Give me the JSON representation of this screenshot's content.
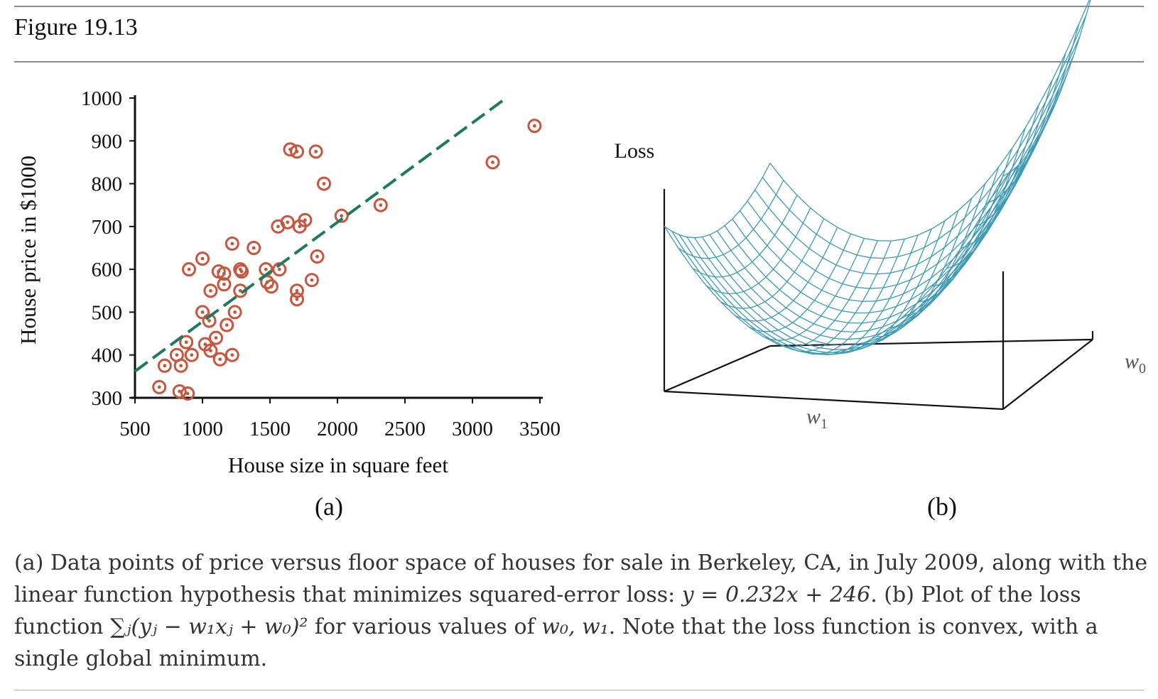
{
  "figure_title": "Figure 19.13",
  "chart_data": [
    {
      "type": "scatter",
      "title": "",
      "panel_label": "(a)",
      "xlabel": "House size in square feet",
      "ylabel": "House price in $1000",
      "xlim": [
        500,
        3500
      ],
      "ylim": [
        300,
        1000
      ],
      "x_ticks": [
        "500",
        "1000",
        "1500",
        "2000",
        "2500",
        "3000",
        "3500"
      ],
      "y_ticks": [
        "1000",
        "900",
        "800",
        "700",
        "600",
        "500",
        "400",
        "300"
      ],
      "marker_color": "#c8553d",
      "line_color": "#1e7a5a",
      "points": [
        [
          680,
          325
        ],
        [
          830,
          315
        ],
        [
          890,
          310
        ],
        [
          720,
          375
        ],
        [
          840,
          375
        ],
        [
          810,
          400
        ],
        [
          920,
          400
        ],
        [
          880,
          430
        ],
        [
          1020,
          425
        ],
        [
          1060,
          410
        ],
        [
          1100,
          440
        ],
        [
          1130,
          390
        ],
        [
          1220,
          400
        ],
        [
          1180,
          470
        ],
        [
          1240,
          500
        ],
        [
          1050,
          480
        ],
        [
          1000,
          500
        ],
        [
          1060,
          550
        ],
        [
          1160,
          565
        ],
        [
          1280,
          550
        ],
        [
          900,
          600
        ],
        [
          1000,
          625
        ],
        [
          1120,
          595
        ],
        [
          1160,
          590
        ],
        [
          1280,
          600
        ],
        [
          1290,
          595
        ],
        [
          1220,
          660
        ],
        [
          1380,
          650
        ],
        [
          1470,
          600
        ],
        [
          1480,
          570
        ],
        [
          1510,
          560
        ],
        [
          1570,
          600
        ],
        [
          1560,
          700
        ],
        [
          1630,
          710
        ],
        [
          1720,
          700
        ],
        [
          1760,
          715
        ],
        [
          1700,
          550
        ],
        [
          1700,
          530
        ],
        [
          1810,
          575
        ],
        [
          1850,
          630
        ],
        [
          1650,
          880
        ],
        [
          1700,
          875
        ],
        [
          1840,
          875
        ],
        [
          1900,
          800
        ],
        [
          2030,
          725
        ],
        [
          2320,
          750
        ],
        [
          3150,
          850
        ],
        [
          3460,
          935
        ]
      ],
      "fit_line": {
        "slope": 0.232,
        "intercept": 246,
        "x_range": [
          500,
          3250
        ]
      }
    },
    {
      "type": "surface",
      "title": "",
      "panel_label": "(b)",
      "zlabel": "Loss",
      "xlabel": "w1",
      "ylabel": "w0",
      "surface_color": "#3e9ab5"
    }
  ],
  "caption": {
    "line1": "(a) Data points of price versus floor space of houses for sale in Berkeley, CA, in July 2009, along with the",
    "line2_a": "linear function hypothesis that minimizes squared-error loss: ",
    "line2_math": "y = 0.232x + 246",
    "line2_b": ". (b) Plot of the loss",
    "line3_a": "function ",
    "line3_math": "∑ⱼ(yⱼ − w₁xⱼ + w₀)²",
    "line3_b": " for various values of ",
    "line3_math2": "w₀, w₁",
    "line3_c": ". Note that the loss function is convex, with a",
    "line4": "single global minimum."
  }
}
